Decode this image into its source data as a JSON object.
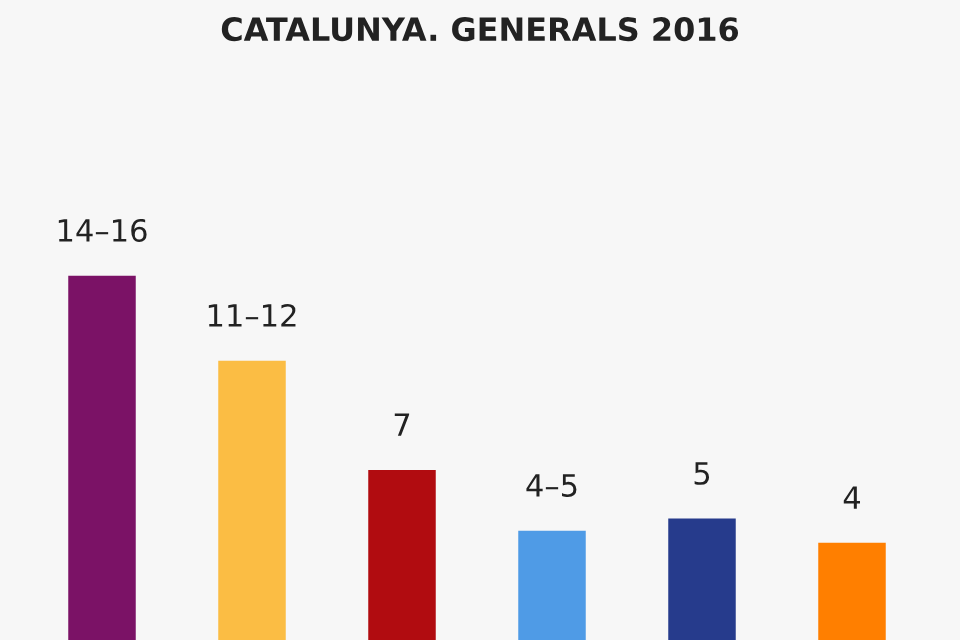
{
  "chart_data": {
    "type": "bar",
    "title": "CATALUNYA. GENERALS 2016",
    "categories": [
      null,
      null,
      null,
      null,
      null,
      null
    ],
    "values": [
      15,
      11.5,
      7,
      4.5,
      5,
      4
    ],
    "colors": [
      "#7b1266",
      "#fbbd44",
      "#b10c10",
      "#4f9be6",
      "#263b8c",
      "#ff7f00"
    ],
    "value_labels": [
      "14–16",
      "11–12",
      "7",
      "4–5",
      "5",
      "4"
    ]
  }
}
